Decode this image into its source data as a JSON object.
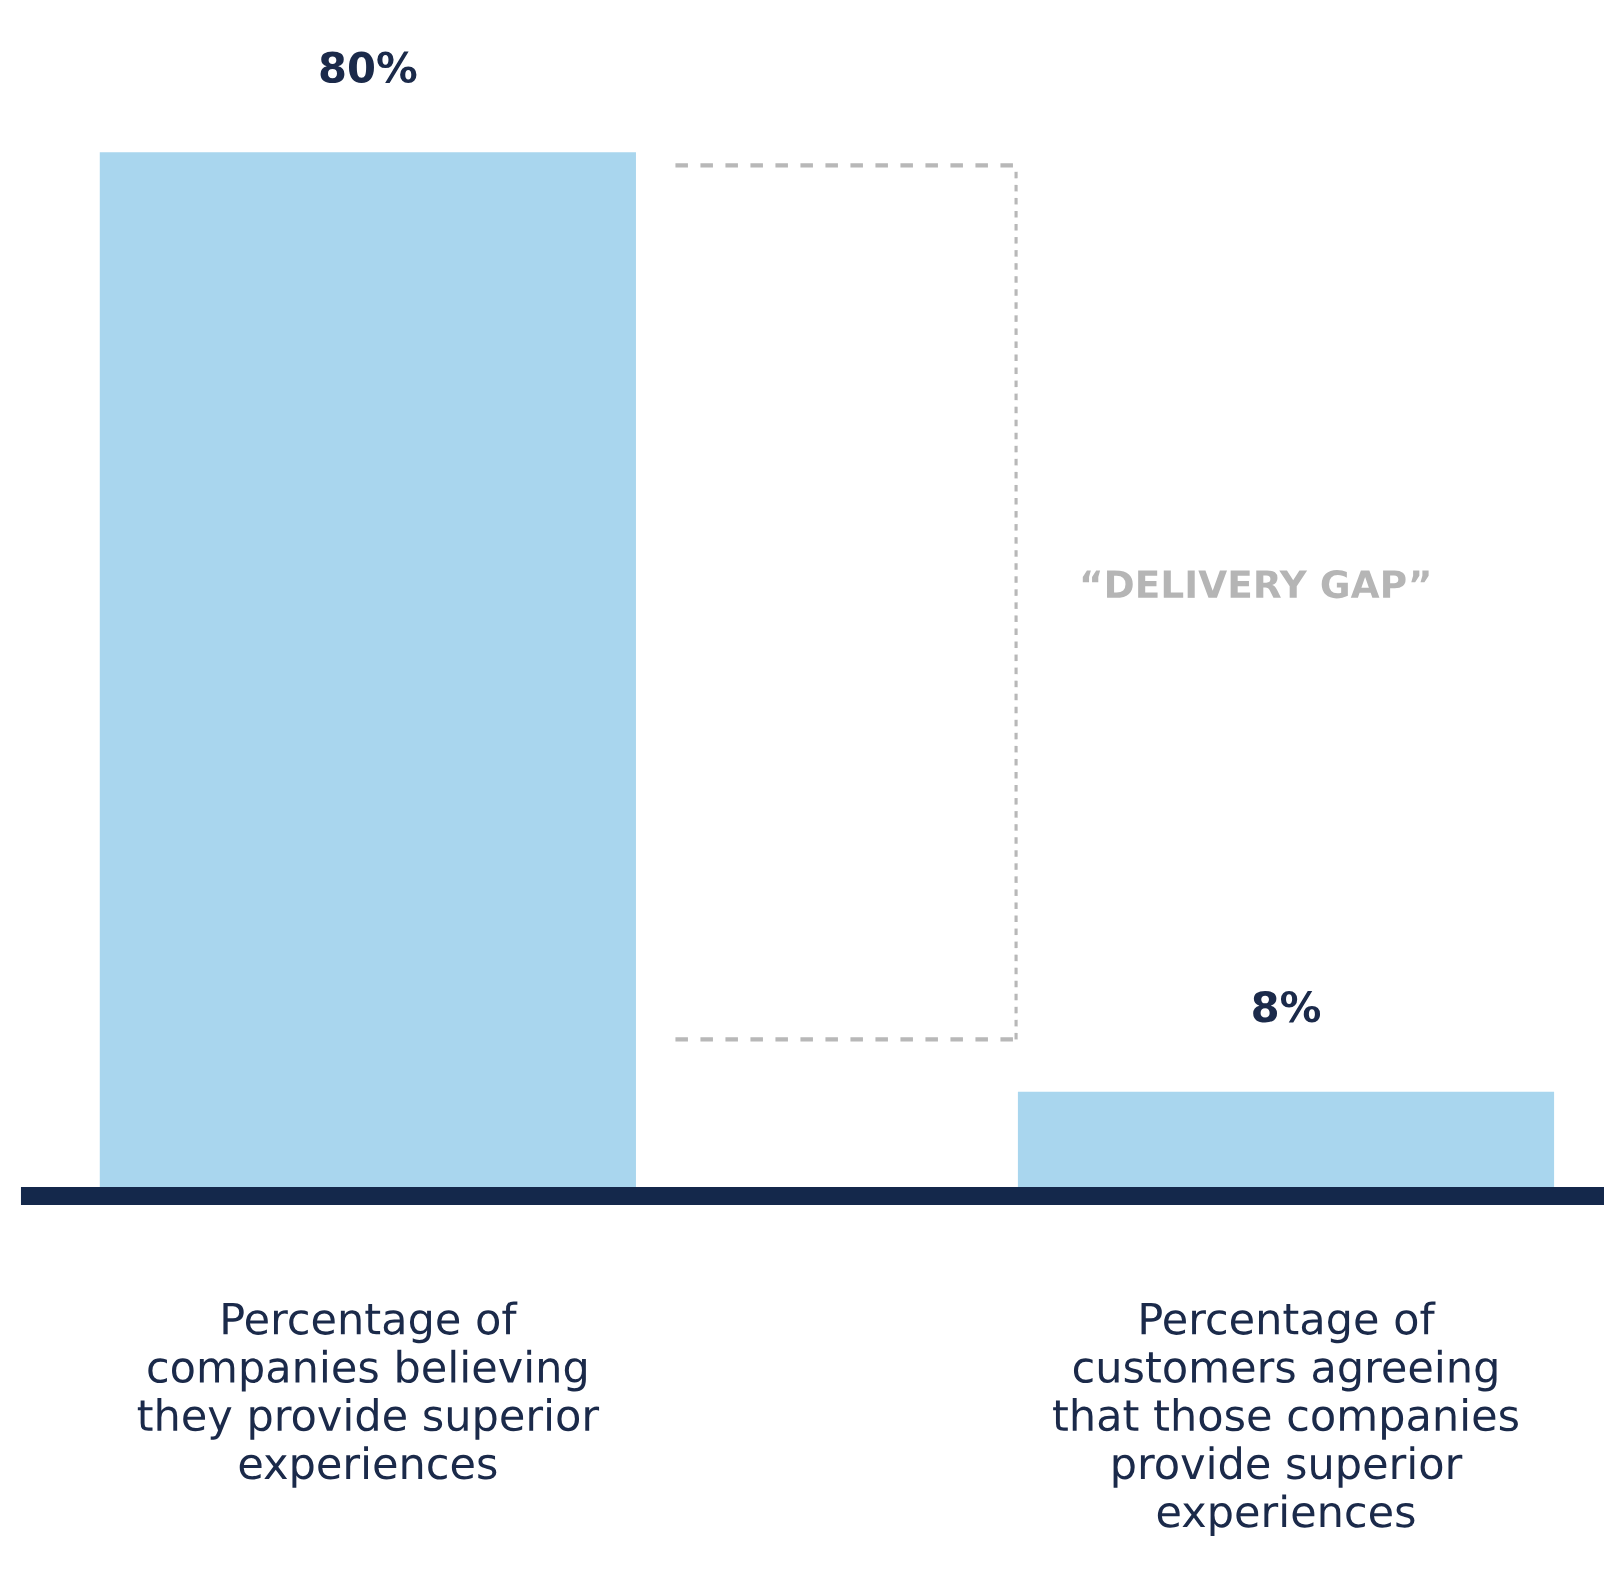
{
  "chart_data": {
    "type": "bar",
    "categories": [
      "Percentage of\ncompanies believing\nthey provide superior\nexperiences",
      "Percentage of\ncustomers agreeing\nthat those companies\nprovide superior\nexperiences"
    ],
    "values": [
      80,
      8
    ],
    "color": "#a9d6ee",
    "value_labels": [
      "80%",
      "8%"
    ],
    "ref_lines": [
      {
        "axis": "y",
        "value": 79,
        "color": "#b8b8b8",
        "line_style": "dashed"
      },
      {
        "axis": "y",
        "value": 12,
        "color": "#b8b8b8",
        "line_style": "dashed"
      }
    ],
    "annotations": [
      "“DELIVERY GAP”"
    ],
    "grid": false,
    "legend": false
  }
}
